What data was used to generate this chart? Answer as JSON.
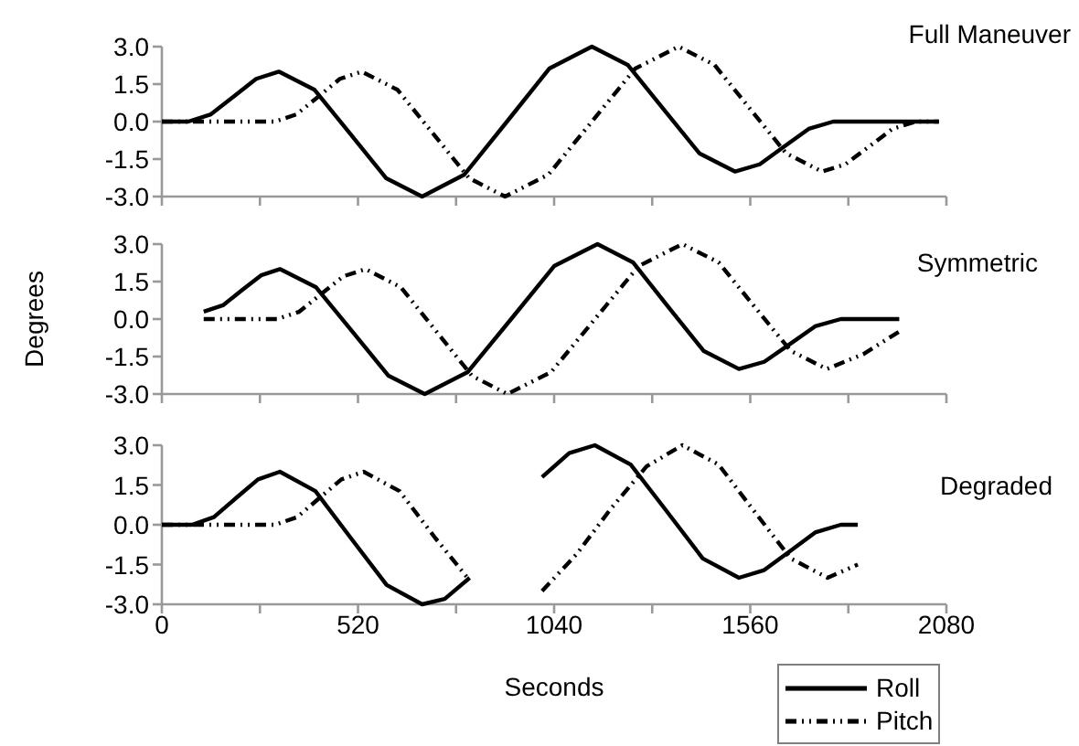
{
  "chart_data": [
    {
      "type": "line",
      "title": "Full Maneuver",
      "xlim": [
        0,
        2080
      ],
      "ylim": [
        -3,
        3
      ],
      "tick_labels": "y",
      "grid": false,
      "legend": "bottom right",
      "xticks": [
        {
          "value": 0,
          "label": null
        },
        {
          "value": 260,
          "label": null
        },
        {
          "value": 520,
          "label": null
        },
        {
          "value": 780,
          "label": null
        },
        {
          "value": 1040,
          "label": null
        },
        {
          "value": 1300,
          "label": null
        },
        {
          "value": 1560,
          "label": null
        },
        {
          "value": 1820,
          "label": null
        },
        {
          "value": 2080,
          "label": null
        }
      ],
      "yticks": [
        {
          "value": -3,
          "label": "-3.0"
        },
        {
          "value": -1.5,
          "label": "-1.5"
        },
        {
          "value": 0,
          "label": "0.0"
        },
        {
          "value": 1.5,
          "label": "1.5"
        },
        {
          "value": 3,
          "label": "3.0"
        }
      ],
      "series": [
        {
          "name": "Roll",
          "color": "#000000",
          "line_style": "solid",
          "x": [
            0,
            70,
            130,
            190,
            250,
            310,
            405,
            500,
            595,
            690,
            802,
            915,
            1027,
            1140,
            1235,
            1330,
            1425,
            1520,
            1585,
            1650,
            1715,
            1780,
            2060
          ],
          "values": [
            0,
            0,
            0.29,
            1.0,
            1.71,
            2.0,
            1.27,
            -0.5,
            -2.27,
            -3,
            -2.12,
            0,
            2.12,
            3,
            2.27,
            0.5,
            -1.27,
            -2,
            -1.71,
            -1.0,
            -0.29,
            0,
            0
          ]
        },
        {
          "name": "Pitch",
          "color": "#000000",
          "line_style": "dashdot",
          "x": [
            0,
            300,
            357,
            415,
            472,
            530,
            625,
            720,
            815,
            910,
            1025,
            1140,
            1255,
            1370,
            1465,
            1560,
            1655,
            1750,
            1812,
            1875,
            1937,
            2000,
            2060
          ],
          "values": [
            0,
            0,
            0.29,
            1.0,
            1.71,
            2,
            1.27,
            -0.5,
            -2.27,
            -3,
            -2.12,
            0,
            2.12,
            3,
            2.27,
            0.5,
            -1.27,
            -2,
            -1.71,
            -1.0,
            -0.29,
            0,
            0
          ]
        }
      ]
    },
    {
      "type": "line",
      "title": "Symmetric",
      "ylabel": "Degrees",
      "xlim": [
        0,
        2080
      ],
      "ylim": [
        -3,
        3
      ],
      "tick_labels": "y",
      "grid": false,
      "legend": "bottom right",
      "xticks": [
        {
          "value": 0,
          "label": null
        },
        {
          "value": 260,
          "label": null
        },
        {
          "value": 520,
          "label": null
        },
        {
          "value": 780,
          "label": null
        },
        {
          "value": 1040,
          "label": null
        },
        {
          "value": 1300,
          "label": null
        },
        {
          "value": 1560,
          "label": null
        },
        {
          "value": 1820,
          "label": null
        },
        {
          "value": 2080,
          "label": null
        }
      ],
      "yticks": [
        {
          "value": -3,
          "label": "-3.0"
        },
        {
          "value": -1.5,
          "label": "-1.5"
        },
        {
          "value": 0,
          "label": "0.0"
        },
        {
          "value": 1.5,
          "label": "1.5"
        },
        {
          "value": 3,
          "label": "3.0"
        }
      ],
      "series": [
        {
          "name": "Roll",
          "color": "#000000",
          "line_style": "solid",
          "x": [
            111,
            162,
            212,
            263,
            313,
            409,
            505,
            601,
            697,
            811,
            926,
            1040,
            1155,
            1249,
            1342,
            1436,
            1530,
            1597,
            1665,
            1732,
            1800,
            1955
          ],
          "values": [
            0.3,
            0.55,
            1.15,
            1.75,
            2.0,
            1.27,
            -0.5,
            -2.27,
            -3,
            -2.12,
            0,
            2.12,
            3,
            2.27,
            0.5,
            -1.27,
            -2,
            -1.71,
            -1.0,
            -0.29,
            0,
            0
          ]
        },
        {
          "name": "Pitch",
          "color": "#000000",
          "line_style": "dashdot",
          "x": [
            111,
            305,
            364,
            422,
            481,
            540,
            634,
            728,
            822,
            916,
            1032,
            1148,
            1264,
            1380,
            1476,
            1571,
            1667,
            1763,
            1860,
            1955
          ],
          "values": [
            0,
            0,
            0.29,
            1.0,
            1.71,
            2,
            1.27,
            -0.5,
            -2.27,
            -3,
            -2.12,
            0,
            2.12,
            3,
            2.27,
            0.5,
            -1.27,
            -2,
            -1.4,
            -0.5
          ]
        }
      ]
    },
    {
      "type": "line",
      "title": "Degraded",
      "xlabel": "Seconds",
      "xlim": [
        0,
        2080
      ],
      "ylim": [
        -3,
        3
      ],
      "grid": false,
      "legend": "bottom right",
      "xticks": [
        0,
        {
          "value": 260,
          "label": null
        },
        520,
        {
          "value": 780,
          "label": null
        },
        1040,
        {
          "value": 1300,
          "label": null
        },
        1560,
        {
          "value": 1820,
          "label": null
        },
        2080
      ],
      "yticks": [
        {
          "value": -3,
          "label": "-3.0"
        },
        {
          "value": -1.5,
          "label": "-1.5"
        },
        {
          "value": 0,
          "label": "0.0"
        },
        {
          "value": 1.5,
          "label": "1.5"
        },
        {
          "value": 3,
          "label": "3.0"
        }
      ],
      "series": [
        {
          "name": "Roll",
          "color": "#000000",
          "line_style": "solid",
          "x": [
            0,
            80,
            138,
            196,
            255,
            313,
            407,
            501,
            596,
            690,
            750,
            816,
            912,
            1008,
            1080,
            1148,
            1243,
            1339,
            1434,
            1530,
            1597,
            1665,
            1732,
            1800,
            1845
          ],
          "values": [
            0,
            0,
            0.29,
            1.0,
            1.71,
            2,
            1.27,
            -0.5,
            -2.27,
            -3,
            -2.8,
            -2.0,
            null,
            1.8,
            2.7,
            3,
            2.27,
            0.5,
            -1.27,
            -2,
            -1.71,
            -1.0,
            -0.29,
            0,
            0
          ]
        },
        {
          "name": "Pitch",
          "color": "#000000",
          "line_style": "dashdot",
          "x": [
            0,
            300,
            359,
            417,
            476,
            535,
            630,
            725,
            816,
            912,
            1008,
            1100,
            1190,
            1285,
            1380,
            1476,
            1571,
            1667,
            1765,
            1845
          ],
          "values": [
            0,
            0,
            0.29,
            1.0,
            1.71,
            2,
            1.27,
            -0.5,
            -2.1,
            null,
            -2.5,
            -1.1,
            0.6,
            2.2,
            3,
            2.27,
            0.5,
            -1.27,
            -2,
            -1.5
          ]
        }
      ]
    }
  ]
}
